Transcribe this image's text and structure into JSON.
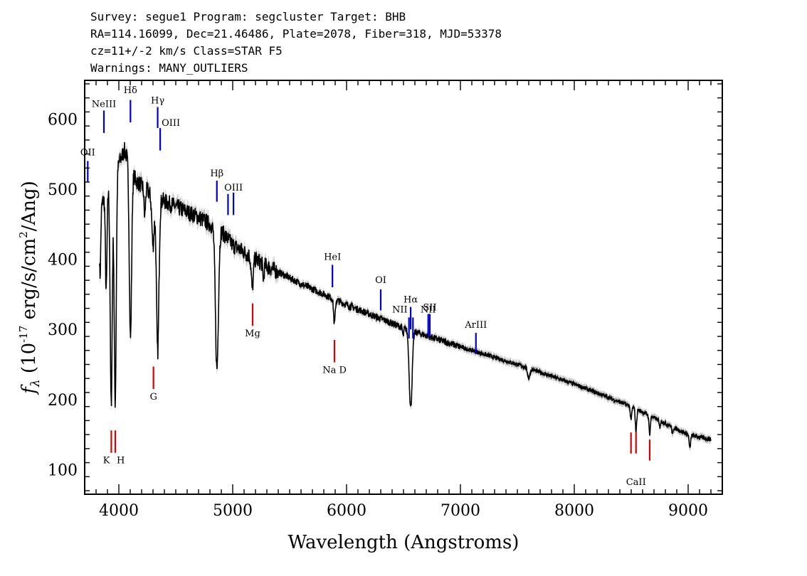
{
  "header": {
    "line1": "Survey: segue1 Program: segcluster Target: BHB",
    "line2": "RA=114.16099, Dec=21.46486, Plate=2078, Fiber=318, MJD=53378",
    "line3": "cz=11+/-2 km/s Class=STAR F5",
    "line4": "Warnings: MANY_OUTLIERS"
  },
  "chart_data": {
    "type": "line",
    "xlabel": "Wavelength (Angstroms)",
    "ylabel": "f_λ (10^-17 erg/s/cm^2/Ang)",
    "xlim": [
      3700,
      9300
    ],
    "ylim": [
      65,
      655
    ],
    "xticks": [
      4000,
      5000,
      6000,
      7000,
      8000,
      9000
    ],
    "yticks": [
      100,
      200,
      300,
      400,
      500,
      600
    ],
    "grid": false,
    "colors": {
      "spectrum": "#000000",
      "error": "#bbbbbb",
      "emission": "#0000cc",
      "absorption": "#dd0000"
    },
    "continuum": {
      "x": [
        3830,
        3950,
        4050,
        4150,
        4300,
        4500,
        4700,
        4900,
        5000,
        5300,
        5600,
        6000,
        6500,
        7000,
        7500,
        8000,
        8500,
        9000,
        9200
      ],
      "y": [
        470,
        520,
        555,
        512,
        490,
        475,
        460,
        440,
        420,
        390,
        365,
        335,
        302,
        275,
        250,
        222,
        190,
        150,
        143
      ]
    },
    "absorption_features": [
      {
        "x": 3835,
        "depth": 95,
        "width": 6
      },
      {
        "x": 3889,
        "depth": 140,
        "width": 7
      },
      {
        "x": 3933,
        "depth": 320,
        "width": 9
      },
      {
        "x": 3968,
        "depth": 330,
        "width": 9
      },
      {
        "x": 4102,
        "depth": 245,
        "width": 10
      },
      {
        "x": 4227,
        "depth": 40,
        "width": 6
      },
      {
        "x": 4300,
        "depth": 70,
        "width": 10
      },
      {
        "x": 4341,
        "depth": 220,
        "width": 11
      },
      {
        "x": 4861,
        "depth": 200,
        "width": 13
      },
      {
        "x": 5172,
        "depth": 45,
        "width": 9
      },
      {
        "x": 5270,
        "depth": 20,
        "width": 6
      },
      {
        "x": 5893,
        "depth": 35,
        "width": 7
      },
      {
        "x": 6497,
        "depth": 12,
        "width": 5
      },
      {
        "x": 6563,
        "depth": 110,
        "width": 13
      },
      {
        "x": 7600,
        "depth": 14,
        "width": 10
      },
      {
        "x": 8498,
        "depth": 20,
        "width": 6
      },
      {
        "x": 8542,
        "depth": 32,
        "width": 6
      },
      {
        "x": 8662,
        "depth": 26,
        "width": 6
      },
      {
        "x": 8750,
        "depth": 10,
        "width": 5
      },
      {
        "x": 8863,
        "depth": 12,
        "width": 5
      },
      {
        "x": 9015,
        "depth": 20,
        "width": 6
      }
    ],
    "line_markers": [
      {
        "label": "OII",
        "x": 3727,
        "y1": 510,
        "y2": 540,
        "color": "emission",
        "label_y": 548,
        "anchor": "middle"
      },
      {
        "label": "NeIII",
        "x": 3869,
        "y1": 580,
        "y2": 612,
        "color": "emission",
        "label_y": 617,
        "anchor": "middle"
      },
      {
        "label": "Hδ",
        "x": 4102,
        "y1": 595,
        "y2": 627,
        "color": "emission",
        "label_y": 637,
        "anchor": "middle"
      },
      {
        "label": "Hγ",
        "x": 4341,
        "y1": 587,
        "y2": 617,
        "color": "emission",
        "label_y": 622,
        "anchor": "middle"
      },
      {
        "label": "OIII",
        "x": 4363,
        "y1": 555,
        "y2": 587,
        "color": "emission",
        "label_y": 590,
        "anchor": "start"
      },
      {
        "label": "Hβ",
        "x": 4861,
        "y1": 482,
        "y2": 512,
        "color": "emission",
        "label_y": 518,
        "anchor": "middle"
      },
      {
        "label": "OIII",
        "x": 4959,
        "y1": 463,
        "y2": 493,
        "color": "emission",
        "label_y": 0,
        "anchor": "middle"
      },
      {
        "label": "OIII",
        "x": 5007,
        "y1": 463,
        "y2": 495,
        "color": "emission",
        "label_y": 498,
        "anchor": "middle"
      },
      {
        "label": "HeI",
        "x": 5876,
        "y1": 360,
        "y2": 392,
        "color": "emission",
        "label_y": 399,
        "anchor": "middle"
      },
      {
        "label": "OI",
        "x": 6300,
        "y1": 327,
        "y2": 357,
        "color": "emission",
        "label_y": 366,
        "anchor": "middle"
      },
      {
        "label": "NII",
        "x": 6548,
        "y1": 287,
        "y2": 317,
        "color": "emission",
        "label_y": 324,
        "anchor": "end"
      },
      {
        "label": "Hα",
        "x": 6563,
        "y1": 300,
        "y2": 332,
        "color": "emission",
        "label_y": 338,
        "anchor": "middle"
      },
      {
        "label": "NII",
        "x": 6583,
        "y1": 287,
        "y2": 317,
        "color": "emission",
        "label_y": 0,
        "anchor": "middle"
      },
      {
        "label": "NII",
        "x": 6717,
        "y1": 290,
        "y2": 322,
        "color": "emission",
        "label_y": 324,
        "anchor": "middle"
      },
      {
        "label": "SII",
        "x": 6731,
        "y1": 290,
        "y2": 322,
        "color": "emission",
        "label_y": 327,
        "anchor": "middle"
      },
      {
        "label": "ArIII",
        "x": 7136,
        "y1": 265,
        "y2": 295,
        "color": "emission",
        "label_y": 302,
        "anchor": "middle"
      },
      {
        "label": "K",
        "x": 3934,
        "y1": 124,
        "y2": 156,
        "color": "absorption",
        "label_y": 109,
        "anchor": "end"
      },
      {
        "label": "H",
        "x": 3969,
        "y1": 124,
        "y2": 156,
        "color": "absorption",
        "label_y": 109,
        "anchor": "start"
      },
      {
        "label": "G",
        "x": 4304,
        "y1": 215,
        "y2": 247,
        "color": "absorption",
        "label_y": 200,
        "anchor": "middle"
      },
      {
        "label": "Mg",
        "x": 5175,
        "y1": 305,
        "y2": 337,
        "color": "absorption",
        "label_y": 290,
        "anchor": "middle"
      },
      {
        "label": "Na D",
        "x": 5894,
        "y1": 253,
        "y2": 285,
        "color": "absorption",
        "label_y": 238,
        "anchor": "middle"
      },
      {
        "label": "CaII",
        "x": 8498,
        "y1": 123,
        "y2": 153,
        "color": "absorption",
        "label_y": 0,
        "anchor": "middle"
      },
      {
        "label": "CaII",
        "x": 8542,
        "y1": 123,
        "y2": 153,
        "color": "absorption",
        "label_y": 78,
        "anchor": "middle"
      },
      {
        "label": "CaII",
        "x": 8662,
        "y1": 113,
        "y2": 143,
        "color": "absorption",
        "label_y": 0,
        "anchor": "middle"
      }
    ]
  }
}
